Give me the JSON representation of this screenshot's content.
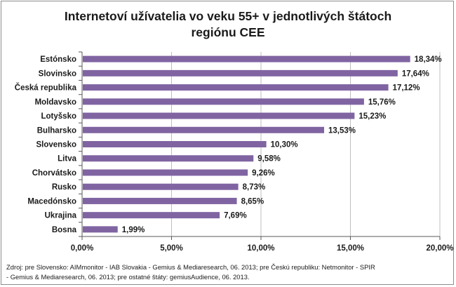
{
  "title_line1": "Internetoví užívatelia vo veku 55+ v jednotlivých štátoch",
  "title_line2": "regiónu CEE",
  "source_line1": "Zdroj: pre Slovensko: AIMmonitor - IAB Slovakia - Gemius & Mediaresearch, 06. 2013; pre Českú republiku: Netmonitor - SPIR",
  "source_line2": "- Gemius & Mediaresearch, 06. 2013; pre ostatné štáty: gemiusAudience, 06. 2013.",
  "colors": {
    "bar": "#8064a2",
    "grid": "#bfbfbf",
    "axis": "#595959"
  },
  "chart_data": {
    "type": "bar",
    "orientation": "horizontal",
    "categories": [
      "Estónsko",
      "Slovinsko",
      "Česká republika",
      "Moldavsko",
      "Lotyšsko",
      "Bulharsko",
      "Slovensko",
      "Litva",
      "Chorvátsko",
      "Rusko",
      "Macedónsko",
      "Ukrajina",
      "Bosna"
    ],
    "values": [
      18.34,
      17.64,
      17.12,
      15.76,
      15.23,
      13.53,
      10.3,
      9.58,
      9.26,
      8.73,
      8.65,
      7.69,
      1.99
    ],
    "data_labels": [
      "18,34%",
      "17,64%",
      "17,12%",
      "15,76%",
      "15,23%",
      "13,53%",
      "10,30%",
      "9,58%",
      "9,26%",
      "8,73%",
      "8,65%",
      "7,69%",
      "1,99%"
    ],
    "xlim": [
      0,
      20
    ],
    "x_ticks": [
      0,
      5,
      10,
      15,
      20
    ],
    "x_tick_labels": [
      "0,00%",
      "5,00%",
      "10,00%",
      "15,00%",
      "20,00%"
    ],
    "grid": true,
    "legend": "none"
  }
}
